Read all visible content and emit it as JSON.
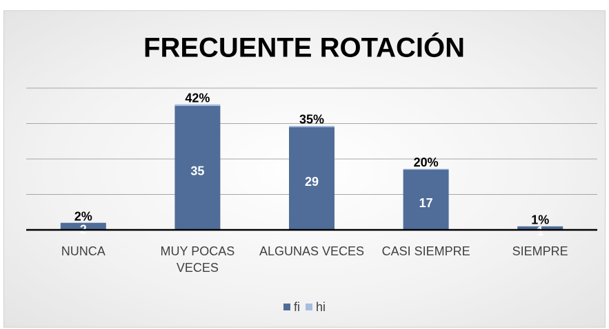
{
  "chart_data": {
    "type": "bar",
    "stacked": true,
    "title": "FRECUENTE ROTACIÓN",
    "categories": [
      "NUNCA",
      "MUY POCAS VECES",
      "ALGUNAS VECES",
      "CASI SIEMPRE",
      "SIEMPRE"
    ],
    "series": [
      {
        "name": "fi",
        "color": "#4f6d98",
        "values": [
          2,
          35,
          29,
          17,
          1
        ]
      },
      {
        "name": "hi",
        "color": "#a7bcdf",
        "values": [
          0.02,
          0.42,
          0.35,
          0.2,
          0.01
        ],
        "value_labels": [
          "2%",
          "42%",
          "35%",
          "20%",
          "1%"
        ]
      }
    ],
    "ylim": [
      0,
      40
    ],
    "yticks": [
      0,
      10,
      20,
      30,
      40
    ],
    "grid": true,
    "legend": "bottom"
  }
}
